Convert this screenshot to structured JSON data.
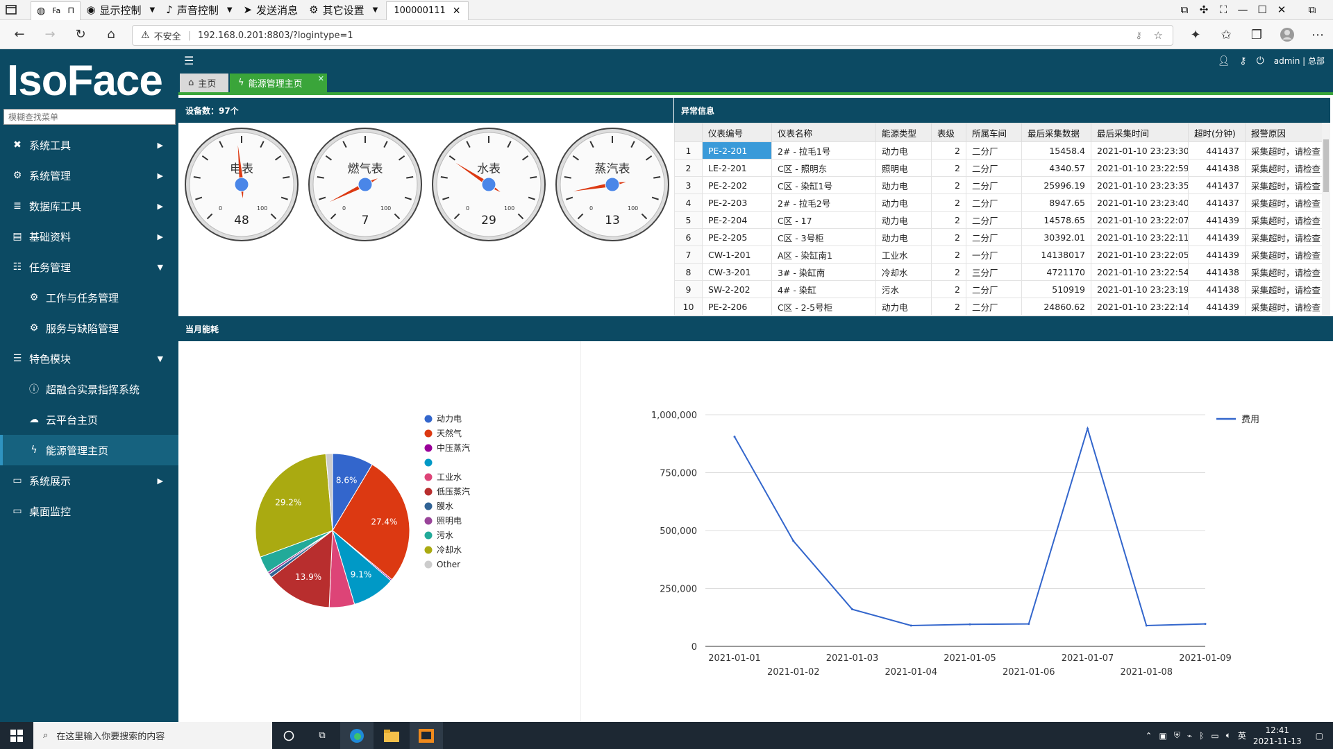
{
  "topbar": {
    "tab_short": "Fa",
    "items": [
      "显示控制",
      "声音控制",
      "发送消息",
      "其它设置"
    ],
    "session_tab": "100000111"
  },
  "address": {
    "insecure_label": "不安全",
    "url": "192.168.0.201:8803/?logintype=1"
  },
  "app": {
    "logo": "IsoFace",
    "search_placeholder": "模糊查找菜单",
    "user": "admin | 总部",
    "tabs": {
      "home": "主页",
      "energy": "能源管理主页"
    }
  },
  "menu": [
    {
      "label": "系统工具",
      "icon": "wrench-icon",
      "arrow": "right"
    },
    {
      "label": "系统管理",
      "icon": "gear-icon",
      "arrow": "right"
    },
    {
      "label": "数据库工具",
      "icon": "database-icon",
      "arrow": "right"
    },
    {
      "label": "基础资料",
      "icon": "file-icon",
      "arrow": "right"
    },
    {
      "label": "任务管理",
      "icon": "tasks-icon",
      "arrow": "down"
    },
    {
      "label": "工作与任务管理",
      "icon": "gears-icon",
      "sub": true
    },
    {
      "label": "服务与缺陷管理",
      "icon": "gears-icon",
      "sub": true
    },
    {
      "label": "特色模块",
      "icon": "list-icon",
      "arrow": "down"
    },
    {
      "label": "超融合实景指挥系统",
      "icon": "info-icon",
      "sub": true
    },
    {
      "label": "云平台主页",
      "icon": "cloud-icon",
      "sub": true
    },
    {
      "label": "能源管理主页",
      "icon": "bolt-icon",
      "sub": true,
      "active": true
    },
    {
      "label": "系统展示",
      "icon": "monitor-icon",
      "arrow": "right"
    },
    {
      "label": "桌面监控",
      "icon": "monitor-icon"
    }
  ],
  "device_panel": {
    "title": "设备数：97个",
    "gauges": [
      {
        "label": "电表",
        "value": 48
      },
      {
        "label": "燃气表",
        "value": 7
      },
      {
        "label": "水表",
        "value": 29
      },
      {
        "label": "蒸汽表",
        "value": 13
      }
    ],
    "gauge_min": "0",
    "gauge_max": "100"
  },
  "alarm_panel": {
    "title": "异常信息",
    "columns": [
      "仪表编号",
      "仪表名称",
      "能源类型",
      "表级",
      "所属车间",
      "最后采集数据",
      "最后采集时间",
      "超时(分钟)",
      "报警原因"
    ],
    "rows": [
      [
        "1",
        "PE-2-201",
        "2# - 拉毛1号",
        "动力电",
        "2",
        "二分厂",
        "15458.4",
        "2021-01-10 23:23:30",
        "441437",
        "采集超时，请检查"
      ],
      [
        "2",
        "LE-2-201",
        "C区 - 照明东",
        "照明电",
        "2",
        "二分厂",
        "4340.57",
        "2021-01-10 23:22:59",
        "441438",
        "采集超时，请检查"
      ],
      [
        "3",
        "PE-2-202",
        "C区 - 染缸1号",
        "动力电",
        "2",
        "二分厂",
        "25996.19",
        "2021-01-10 23:23:35",
        "441437",
        "采集超时，请检查"
      ],
      [
        "4",
        "PE-2-203",
        "2# - 拉毛2号",
        "动力电",
        "2",
        "二分厂",
        "8947.65",
        "2021-01-10 23:23:40",
        "441437",
        "采集超时，请检查"
      ],
      [
        "5",
        "PE-2-204",
        "C区 - 17",
        "动力电",
        "2",
        "二分厂",
        "14578.65",
        "2021-01-10 23:22:07",
        "441439",
        "采集超时，请检查"
      ],
      [
        "6",
        "PE-2-205",
        "C区 - 3号柜",
        "动力电",
        "2",
        "二分厂",
        "30392.01",
        "2021-01-10 23:22:11",
        "441439",
        "采集超时，请检查"
      ],
      [
        "7",
        "CW-1-201",
        "A区 - 染缸南1",
        "工业水",
        "2",
        "一分厂",
        "14138017",
        "2021-01-10 23:22:05",
        "441439",
        "采集超时，请检查"
      ],
      [
        "8",
        "CW-3-201",
        "3# - 染缸南",
        "冷却水",
        "2",
        "三分厂",
        "4721170",
        "2021-01-10 23:22:54",
        "441438",
        "采集超时，请检查"
      ],
      [
        "9",
        "SW-2-202",
        "4# - 染缸",
        "污水",
        "2",
        "二分厂",
        "510919",
        "2021-01-10 23:23:19",
        "441438",
        "采集超时，请检查"
      ],
      [
        "10",
        "PE-2-206",
        "C区 - 2-5号柜",
        "动力电",
        "2",
        "二分厂",
        "24860.62",
        "2021-01-10 23:22:14",
        "441439",
        "采集超时，请检查"
      ]
    ]
  },
  "energy_panel": {
    "title": "当月能耗"
  },
  "chart_data": [
    {
      "type": "pie",
      "slices": [
        {
          "label": "动力电",
          "value": 8.6,
          "color": "#3366cc",
          "show_pct": true
        },
        {
          "label": "天然气",
          "value": 27.4,
          "color": "#dc3912",
          "show_pct": true
        },
        {
          "label": "中压蒸汽",
          "value": 0.3,
          "color": "#990099"
        },
        {
          "label": "",
          "value": 9.1,
          "color": "#0099c6",
          "show_pct": true
        },
        {
          "label": "工业水",
          "value": 5.3,
          "color": "#dd4477"
        },
        {
          "label": "低压蒸汽",
          "value": 13.9,
          "color": "#b82e2e",
          "show_pct": true
        },
        {
          "label": "膜水",
          "value": 0.8,
          "color": "#316395"
        },
        {
          "label": "照明电",
          "value": 0.5,
          "color": "#994499"
        },
        {
          "label": "污水",
          "value": 3.5,
          "color": "#22aa99"
        },
        {
          "label": "冷却水",
          "value": 29.2,
          "color": "#aaaa11",
          "show_pct": true
        },
        {
          "label": "Other",
          "value": 1.4,
          "color": "#cccccc"
        }
      ],
      "pct_labels": [
        "8.6%",
        "27.4%",
        "9.1%",
        "13.9%",
        "29.2%"
      ]
    },
    {
      "type": "line",
      "x": [
        "2021-01-01",
        "2021-01-02",
        "2021-01-03",
        "2021-01-04",
        "2021-01-05",
        "2021-01-06",
        "2021-01-07",
        "2021-01-08",
        "2021-01-09"
      ],
      "series": [
        {
          "name": "费用",
          "values": [
            905000,
            455000,
            160000,
            90000,
            95000,
            97000,
            940000,
            90000,
            97000
          ],
          "color": "#3366cc"
        }
      ],
      "ylim": [
        0,
        1000000
      ],
      "yticks": [
        "0",
        "250,000",
        "500,000",
        "750,000",
        "1,000,000"
      ],
      "ytick_values": [
        0,
        250000,
        500000,
        750000,
        1000000
      ],
      "legend": "top-right",
      "grid": true
    }
  ],
  "taskbar": {
    "search_placeholder": "在这里输入你要搜索的内容",
    "ime": "英",
    "time": "12:41",
    "date": "2021-11-13"
  }
}
